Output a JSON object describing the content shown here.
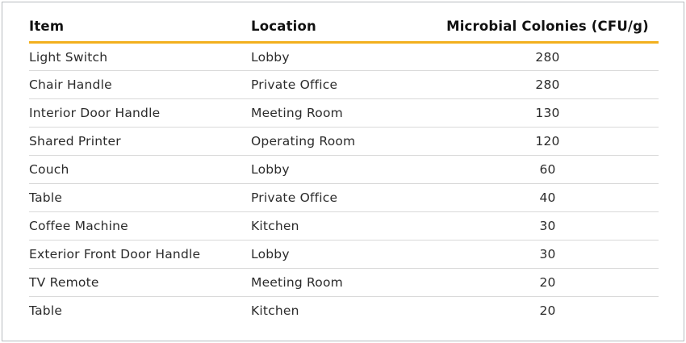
{
  "chart_data": {
    "type": "table",
    "title": "",
    "columns": [
      {
        "label": "Item",
        "align": "left"
      },
      {
        "label": "Location",
        "align": "left"
      },
      {
        "label": "Microbial Colonies (CFU/g)",
        "align": "center"
      }
    ],
    "rows": [
      {
        "item": "Light Switch",
        "location": "Lobby",
        "colonies": "280"
      },
      {
        "item": "Chair Handle",
        "location": "Private Office",
        "colonies": "280"
      },
      {
        "item": "Interior Door Handle",
        "location": "Meeting Room",
        "colonies": "130"
      },
      {
        "item": "Shared Printer",
        "location": "Operating Room",
        "colonies": "120"
      },
      {
        "item": "Couch",
        "location": "Lobby",
        "colonies": "60"
      },
      {
        "item": "Table",
        "location": "Private Office",
        "colonies": "40"
      },
      {
        "item": "Coffee Machine",
        "location": "Kitchen",
        "colonies": "30"
      },
      {
        "item": "Exterior Front Door Handle",
        "location": "Lobby",
        "colonies": "30"
      },
      {
        "item": "TV Remote",
        "location": "Meeting Room",
        "colonies": "20"
      },
      {
        "item": "Table",
        "location": "Kitchen",
        "colonies": "20"
      }
    ]
  },
  "colors": {
    "header_underline": "#f2b01e",
    "row_divider": "#d9d9d9",
    "outer_border": "#b7bcbf",
    "header_text": "#111111",
    "body_text": "#2b2b2b",
    "background": "#ffffff"
  }
}
